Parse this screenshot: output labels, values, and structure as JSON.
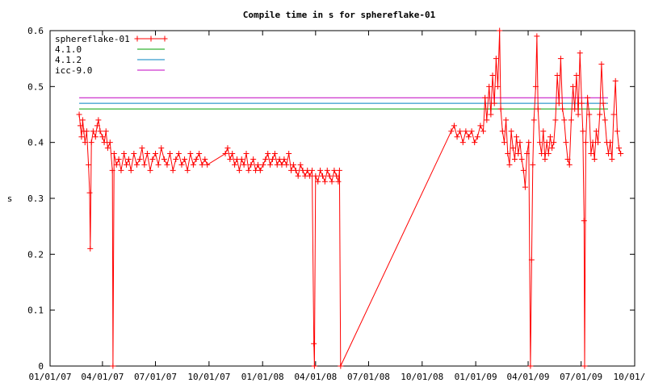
{
  "chart_data": {
    "type": "line",
    "title": "Compile time in s for sphereflake-01",
    "xlabel": "",
    "ylabel": "s",
    "x_ticks": [
      "01/01/07",
      "04/01/07",
      "07/01/07",
      "10/01/07",
      "01/01/08",
      "04/01/08",
      "07/01/08",
      "10/01/08",
      "01/01/09",
      "04/01/09",
      "07/01/09",
      "10/01/09"
    ],
    "xlim": [
      "2007-01-01",
      "2009-10-01"
    ],
    "y_ticks": [
      "0",
      "0.1",
      "0.2",
      "0.3",
      "0.4",
      "0.5",
      "0.6"
    ],
    "ylim": [
      0,
      0.6
    ],
    "grid": false,
    "legend_position": "top-left",
    "series": [
      {
        "name": "sphereflake-01",
        "color": "#ff0000",
        "marker": "plus",
        "points": [
          [
            "2007-02-20",
            0.45
          ],
          [
            "2007-02-22",
            0.43
          ],
          [
            "2007-02-24",
            0.41
          ],
          [
            "2007-02-26",
            0.44
          ],
          [
            "2007-02-28",
            0.42
          ],
          [
            "2007-03-02",
            0.4
          ],
          [
            "2007-03-05",
            0.42
          ],
          [
            "2007-03-08",
            0.36
          ],
          [
            "2007-03-10",
            0.31
          ],
          [
            "2007-03-11",
            0.21
          ],
          [
            "2007-03-13",
            0.4
          ],
          [
            "2007-03-16",
            0.42
          ],
          [
            "2007-03-20",
            0.41
          ],
          [
            "2007-03-23",
            0.43
          ],
          [
            "2007-03-25",
            0.44
          ],
          [
            "2007-03-28",
            0.42
          ],
          [
            "2007-04-01",
            0.41
          ],
          [
            "2007-04-04",
            0.4
          ],
          [
            "2007-04-07",
            0.42
          ],
          [
            "2007-04-10",
            0.39
          ],
          [
            "2007-04-14",
            0.4
          ],
          [
            "2007-04-18",
            0.35
          ],
          [
            "2007-04-19",
            0.0
          ],
          [
            "2007-04-21",
            0.38
          ],
          [
            "2007-04-25",
            0.36
          ],
          [
            "2007-04-29",
            0.37
          ],
          [
            "2007-05-03",
            0.35
          ],
          [
            "2007-05-08",
            0.38
          ],
          [
            "2007-05-12",
            0.36
          ],
          [
            "2007-05-16",
            0.37
          ],
          [
            "2007-05-20",
            0.35
          ],
          [
            "2007-05-25",
            0.38
          ],
          [
            "2007-05-30",
            0.36
          ],
          [
            "2007-06-04",
            0.37
          ],
          [
            "2007-06-08",
            0.39
          ],
          [
            "2007-06-12",
            0.36
          ],
          [
            "2007-06-17",
            0.38
          ],
          [
            "2007-06-22",
            0.35
          ],
          [
            "2007-06-26",
            0.37
          ],
          [
            "2007-07-01",
            0.38
          ],
          [
            "2007-07-06",
            0.36
          ],
          [
            "2007-07-11",
            0.39
          ],
          [
            "2007-07-16",
            0.37
          ],
          [
            "2007-07-21",
            0.36
          ],
          [
            "2007-07-26",
            0.38
          ],
          [
            "2007-07-31",
            0.35
          ],
          [
            "2007-08-05",
            0.37
          ],
          [
            "2007-08-10",
            0.38
          ],
          [
            "2007-08-15",
            0.36
          ],
          [
            "2007-08-20",
            0.37
          ],
          [
            "2007-08-25",
            0.35
          ],
          [
            "2007-08-30",
            0.38
          ],
          [
            "2007-09-04",
            0.36
          ],
          [
            "2007-09-09",
            0.37
          ],
          [
            "2007-09-14",
            0.38
          ],
          [
            "2007-09-19",
            0.36
          ],
          [
            "2007-09-24",
            0.37
          ],
          [
            "2007-09-28",
            0.36
          ],
          [
            "2007-10-29",
            0.38
          ],
          [
            "2007-11-02",
            0.39
          ],
          [
            "2007-11-06",
            0.37
          ],
          [
            "2007-11-10",
            0.38
          ],
          [
            "2007-11-14",
            0.36
          ],
          [
            "2007-11-18",
            0.37
          ],
          [
            "2007-11-22",
            0.35
          ],
          [
            "2007-11-26",
            0.37
          ],
          [
            "2007-11-30",
            0.36
          ],
          [
            "2007-12-04",
            0.38
          ],
          [
            "2007-12-08",
            0.35
          ],
          [
            "2007-12-12",
            0.36
          ],
          [
            "2007-12-16",
            0.37
          ],
          [
            "2007-12-20",
            0.35
          ],
          [
            "2007-12-24",
            0.36
          ],
          [
            "2007-12-28",
            0.35
          ],
          [
            "2008-01-02",
            0.36
          ],
          [
            "2008-01-06",
            0.37
          ],
          [
            "2008-01-10",
            0.38
          ],
          [
            "2008-01-14",
            0.36
          ],
          [
            "2008-01-18",
            0.37
          ],
          [
            "2008-01-22",
            0.38
          ],
          [
            "2008-01-26",
            0.36
          ],
          [
            "2008-01-30",
            0.37
          ],
          [
            "2008-02-03",
            0.36
          ],
          [
            "2008-02-07",
            0.37
          ],
          [
            "2008-02-11",
            0.36
          ],
          [
            "2008-02-15",
            0.38
          ],
          [
            "2008-02-19",
            0.35
          ],
          [
            "2008-02-23",
            0.36
          ],
          [
            "2008-02-27",
            0.35
          ],
          [
            "2008-03-02",
            0.34
          ],
          [
            "2008-03-06",
            0.36
          ],
          [
            "2008-03-10",
            0.35
          ],
          [
            "2008-03-14",
            0.34
          ],
          [
            "2008-03-18",
            0.35
          ],
          [
            "2008-03-22",
            0.34
          ],
          [
            "2008-03-26",
            0.35
          ],
          [
            "2008-03-29",
            0.04
          ],
          [
            "2008-03-30",
            0.0
          ],
          [
            "2008-04-01",
            0.34
          ],
          [
            "2008-04-05",
            0.33
          ],
          [
            "2008-04-09",
            0.35
          ],
          [
            "2008-04-13",
            0.34
          ],
          [
            "2008-04-17",
            0.33
          ],
          [
            "2008-04-21",
            0.35
          ],
          [
            "2008-04-25",
            0.34
          ],
          [
            "2008-04-29",
            0.33
          ],
          [
            "2008-05-03",
            0.35
          ],
          [
            "2008-05-07",
            0.34
          ],
          [
            "2008-05-10",
            0.33
          ],
          [
            "2008-05-12",
            0.35
          ],
          [
            "2008-05-14",
            0.0
          ],
          [
            "2008-11-20",
            0.42
          ],
          [
            "2008-11-25",
            0.43
          ],
          [
            "2008-11-30",
            0.41
          ],
          [
            "2008-12-05",
            0.42
          ],
          [
            "2008-12-10",
            0.4
          ],
          [
            "2008-12-15",
            0.42
          ],
          [
            "2008-12-20",
            0.41
          ],
          [
            "2008-12-25",
            0.42
          ],
          [
            "2008-12-30",
            0.4
          ],
          [
            "2009-01-04",
            0.41
          ],
          [
            "2009-01-09",
            0.43
          ],
          [
            "2009-01-14",
            0.42
          ],
          [
            "2009-01-17",
            0.48
          ],
          [
            "2009-01-20",
            0.44
          ],
          [
            "2009-01-24",
            0.5
          ],
          [
            "2009-01-27",
            0.45
          ],
          [
            "2009-01-30",
            0.52
          ],
          [
            "2009-02-02",
            0.47
          ],
          [
            "2009-02-05",
            0.55
          ],
          [
            "2009-02-08",
            0.5
          ],
          [
            "2009-02-11",
            0.6
          ],
          [
            "2009-02-13",
            0.46
          ],
          [
            "2009-02-16",
            0.42
          ],
          [
            "2009-02-19",
            0.4
          ],
          [
            "2009-02-22",
            0.44
          ],
          [
            "2009-02-25",
            0.38
          ],
          [
            "2009-02-28",
            0.36
          ],
          [
            "2009-03-03",
            0.42
          ],
          [
            "2009-03-06",
            0.39
          ],
          [
            "2009-03-09",
            0.37
          ],
          [
            "2009-03-12",
            0.41
          ],
          [
            "2009-03-15",
            0.38
          ],
          [
            "2009-03-18",
            0.4
          ],
          [
            "2009-03-21",
            0.37
          ],
          [
            "2009-03-24",
            0.35
          ],
          [
            "2009-03-27",
            0.32
          ],
          [
            "2009-03-30",
            0.38
          ],
          [
            "2009-04-02",
            0.4
          ],
          [
            "2009-04-05",
            0.0
          ],
          [
            "2009-04-07",
            0.19
          ],
          [
            "2009-04-09",
            0.36
          ],
          [
            "2009-04-11",
            0.44
          ],
          [
            "2009-04-14",
            0.5
          ],
          [
            "2009-04-16",
            0.59
          ],
          [
            "2009-04-18",
            0.46
          ],
          [
            "2009-04-21",
            0.4
          ],
          [
            "2009-04-24",
            0.38
          ],
          [
            "2009-04-27",
            0.42
          ],
          [
            "2009-04-30",
            0.37
          ],
          [
            "2009-05-03",
            0.4
          ],
          [
            "2009-05-06",
            0.38
          ],
          [
            "2009-05-09",
            0.41
          ],
          [
            "2009-05-12",
            0.39
          ],
          [
            "2009-05-15",
            0.4
          ],
          [
            "2009-05-18",
            0.44
          ],
          [
            "2009-05-21",
            0.52
          ],
          [
            "2009-05-24",
            0.47
          ],
          [
            "2009-05-27",
            0.55
          ],
          [
            "2009-05-30",
            0.46
          ],
          [
            "2009-06-02",
            0.44
          ],
          [
            "2009-06-05",
            0.4
          ],
          [
            "2009-06-08",
            0.37
          ],
          [
            "2009-06-11",
            0.36
          ],
          [
            "2009-06-14",
            0.44
          ],
          [
            "2009-06-17",
            0.5
          ],
          [
            "2009-06-20",
            0.46
          ],
          [
            "2009-06-23",
            0.52
          ],
          [
            "2009-06-26",
            0.45
          ],
          [
            "2009-06-29",
            0.56
          ],
          [
            "2009-07-02",
            0.47
          ],
          [
            "2009-07-04",
            0.42
          ],
          [
            "2009-07-06",
            0.26
          ],
          [
            "2009-07-07",
            0.0
          ],
          [
            "2009-07-09",
            0.4
          ],
          [
            "2009-07-12",
            0.48
          ],
          [
            "2009-07-15",
            0.45
          ],
          [
            "2009-07-18",
            0.38
          ],
          [
            "2009-07-21",
            0.4
          ],
          [
            "2009-07-24",
            0.37
          ],
          [
            "2009-07-27",
            0.42
          ],
          [
            "2009-07-30",
            0.4
          ],
          [
            "2009-08-02",
            0.45
          ],
          [
            "2009-08-05",
            0.54
          ],
          [
            "2009-08-08",
            0.47
          ],
          [
            "2009-08-11",
            0.44
          ],
          [
            "2009-08-14",
            0.4
          ],
          [
            "2009-08-17",
            0.38
          ],
          [
            "2009-08-20",
            0.4
          ],
          [
            "2009-08-23",
            0.37
          ],
          [
            "2009-08-26",
            0.45
          ],
          [
            "2009-08-29",
            0.51
          ],
          [
            "2009-09-01",
            0.42
          ],
          [
            "2009-09-04",
            0.39
          ],
          [
            "2009-09-07",
            0.38
          ]
        ]
      },
      {
        "name": "4.1.0",
        "color": "#00a000",
        "marker": "none",
        "constant": 0.46
      },
      {
        "name": "4.1.2",
        "color": "#0080c0",
        "marker": "none",
        "constant": 0.47
      },
      {
        "name": "icc-9.0",
        "color": "#c000c0",
        "marker": "none",
        "constant": 0.48
      }
    ]
  }
}
